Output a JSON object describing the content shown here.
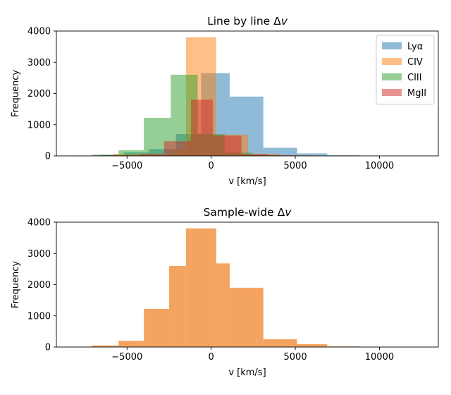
{
  "chart_data": [
    {
      "type": "bar",
      "title_text": "Line by line Δ",
      "title_var": "v",
      "xlabel": "v [km/s]",
      "ylabel": "Frequency",
      "xlim": [
        -9200,
        13500
      ],
      "ylim": [
        0,
        4000
      ],
      "xticks": [
        -5000,
        0,
        5000,
        10000
      ],
      "xtick_labels": [
        "−5000",
        "0",
        "5000",
        "10000"
      ],
      "yticks": [
        0,
        1000,
        2000,
        3000,
        4000
      ],
      "ytick_labels": [
        "0",
        "1000",
        "2000",
        "3000",
        "4000"
      ],
      "legend_position": "upper right",
      "alpha": 0.5,
      "series": [
        {
          "name": "Lyα",
          "color": "#1f77b4",
          "bins": [
            -8700,
            -6700,
            -5200,
            -3700,
            -2100,
            -600,
            1100,
            3100,
            5100,
            6900,
            8800,
            10800
          ],
          "values": [
            10,
            30,
            110,
            220,
            700,
            2650,
            1900,
            260,
            80,
            20,
            5
          ]
        },
        {
          "name": "CIV",
          "color": "#ff7f0e",
          "bins": [
            -5800,
            -4000,
            -2200,
            -1500,
            300,
            2200,
            4100,
            6000,
            7900,
            9700,
            11600
          ],
          "values": [
            60,
            50,
            200,
            3800,
            680,
            60,
            20,
            10,
            5,
            3
          ]
        },
        {
          "name": "CIII",
          "color": "#2ca02c",
          "bins": [
            -8700,
            -7100,
            -5500,
            -4000,
            -2400,
            -800,
            800,
            2400,
            4000,
            5500,
            7100,
            8700
          ],
          "values": [
            10,
            40,
            180,
            1220,
            2600,
            700,
            100,
            30,
            10,
            5,
            3
          ]
        },
        {
          "name": "MgII",
          "color": "#d62728",
          "bins": [
            -6400,
            -4200,
            -2800,
            -1200,
            100,
            1800,
            3400,
            5100,
            6700
          ],
          "values": [
            20,
            60,
            470,
            1800,
            650,
            60,
            20,
            5
          ]
        }
      ]
    },
    {
      "type": "bar",
      "title_text": "Sample-wide Δ",
      "title_var": "v",
      "xlabel": "v [km/s]",
      "ylabel": "Frequency",
      "xlim": [
        -9200,
        13500
      ],
      "ylim": [
        0,
        4000
      ],
      "xticks": [
        -5000,
        0,
        5000,
        10000
      ],
      "xtick_labels": [
        "−5000",
        "0",
        "5000",
        "10000"
      ],
      "yticks": [
        0,
        1000,
        2000,
        3000,
        4000
      ],
      "ytick_labels": [
        "0",
        "1000",
        "2000",
        "3000",
        "4000"
      ],
      "series": [
        {
          "color": "#f4a460",
          "bins": [
            -8700,
            -7100,
            -5500,
            -4000,
            -2500,
            -1500,
            300,
            1100,
            3100,
            5100,
            6900,
            8800,
            10800
          ],
          "values": [
            10,
            50,
            200,
            1220,
            2600,
            3800,
            2680,
            1900,
            250,
            90,
            20,
            5
          ]
        }
      ]
    }
  ]
}
